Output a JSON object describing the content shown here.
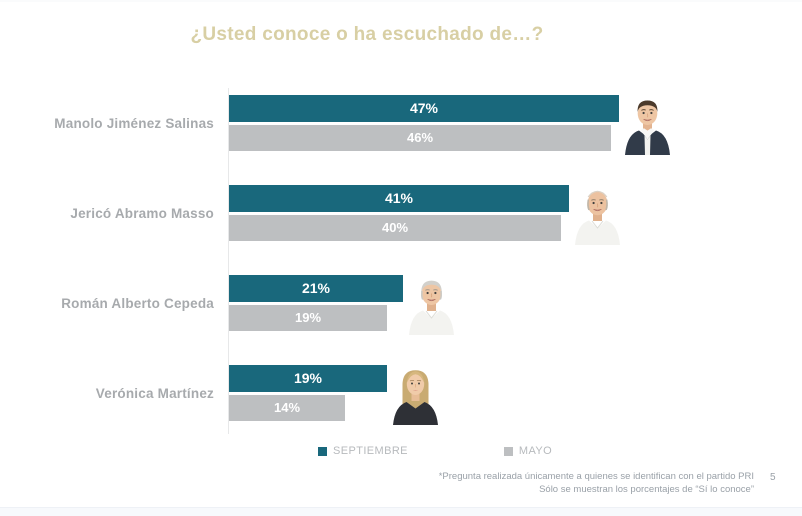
{
  "title": "¿Usted conoce o ha escuchado de…?",
  "colors": {
    "september": "#19687C",
    "may": "#BDBFC1",
    "title": "#D8CFA4",
    "label": "#A7AAAD",
    "legend_text": "#B7BABD",
    "footnote": "#9AA1A8"
  },
  "chart_data": {
    "type": "bar",
    "orientation": "horizontal",
    "title": "¿Usted conoce o ha escuchado de…?",
    "categories": [
      "Manolo Jiménez Salinas",
      "Jericó Abramo Masso",
      "Román Alberto Cepeda",
      "Verónica Martínez"
    ],
    "series": [
      {
        "name": "SEPTIEMBRE",
        "color": "#19687C",
        "values": [
          47,
          41,
          21,
          19
        ]
      },
      {
        "name": "MAYO",
        "color": "#BDBFC1",
        "values": [
          46,
          40,
          19,
          14
        ]
      }
    ],
    "value_suffix": "%",
    "xlim": [
      0,
      50
    ],
    "grid": false,
    "legend_position": "bottom",
    "data_labels": true
  },
  "rows": [
    {
      "name": "Manolo Jiménez Salinas",
      "sep": 47,
      "sep_label": "47%",
      "may": 46,
      "may_label": "46%",
      "photo": "manolo-jimenez-photo"
    },
    {
      "name": "Jericó Abramo Masso",
      "sep": 41,
      "sep_label": "41%",
      "may": 40,
      "may_label": "40%",
      "photo": "jerico-abramo-photo"
    },
    {
      "name": "Román Alberto Cepeda",
      "sep": 21,
      "sep_label": "21%",
      "may": 19,
      "may_label": "19%",
      "photo": "roman-cepeda-photo"
    },
    {
      "name": "Verónica Martínez",
      "sep": 19,
      "sep_label": "19%",
      "may": 14,
      "may_label": "14%",
      "photo": "veronica-martinez-photo"
    }
  ],
  "legend": {
    "september_label": "SEPTIEMBRE",
    "may_label": "MAYO"
  },
  "footnote": {
    "line1": "*Pregunta realizada únicamente a quienes se identifican con el partido  PRI",
    "line2": "Sólo se muestran los porcentajes de “Sí lo conoce”",
    "page": "5"
  }
}
